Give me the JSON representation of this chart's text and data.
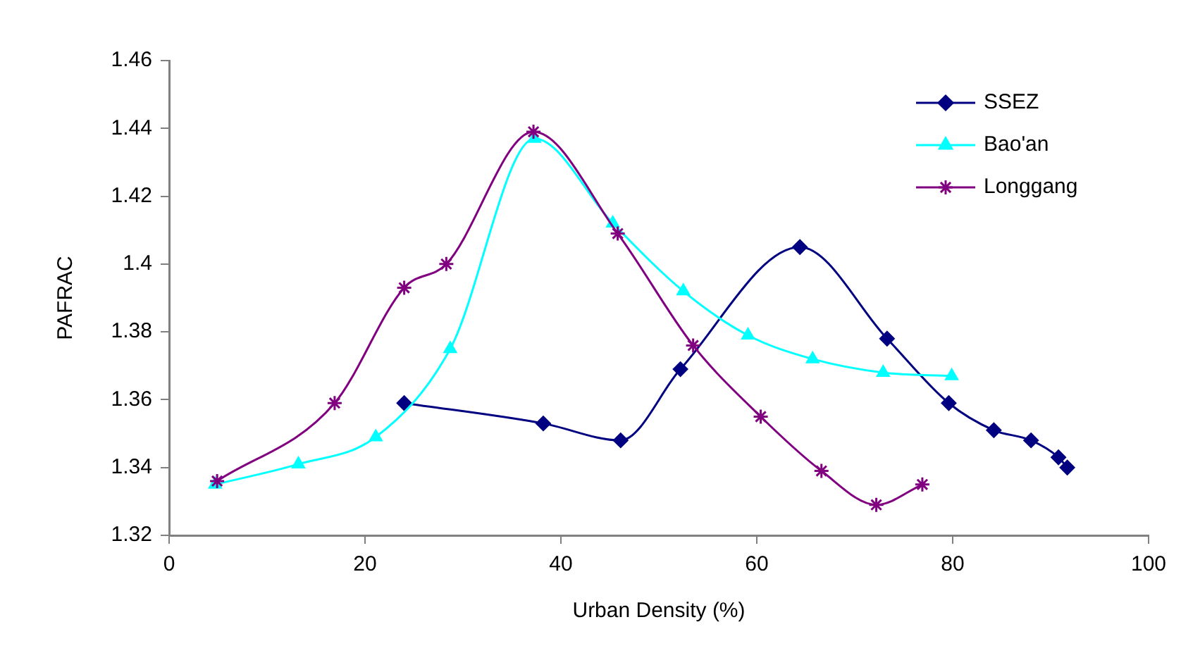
{
  "chart_data": {
    "type": "line",
    "xlabel": "Urban Density (%)",
    "ylabel": "PAFRAC",
    "xlim": [
      0,
      100
    ],
    "xticks": [
      0,
      20,
      40,
      60,
      80,
      100
    ],
    "ylim": [
      1.32,
      1.46
    ],
    "yticks": [
      1.32,
      1.34,
      1.36,
      1.38,
      1.4,
      1.42,
      1.44,
      1.46
    ],
    "grid": false,
    "legend": "top right",
    "series": [
      {
        "name": "SSEZ",
        "color": "#000080",
        "marker": "diamond",
        "x": [
          24.0,
          38.2,
          46.1,
          52.2,
          64.4,
          73.3,
          79.6,
          84.2,
          88.0,
          90.8,
          91.7
        ],
        "values": [
          1.359,
          1.353,
          1.348,
          1.369,
          1.405,
          1.378,
          1.359,
          1.351,
          1.348,
          1.343,
          1.34
        ]
      },
      {
        "name": "Bao'an",
        "color": "#00ffff",
        "marker": "triangle",
        "x": [
          4.7,
          13.2,
          21.1,
          28.7,
          37.3,
          45.3,
          52.5,
          59.1,
          65.7,
          72.9,
          79.9
        ],
        "values": [
          1.335,
          1.341,
          1.349,
          1.375,
          1.437,
          1.412,
          1.392,
          1.379,
          1.372,
          1.368,
          1.367
        ]
      },
      {
        "name": "Longgang",
        "color": "#800080",
        "marker": "cross",
        "x": [
          4.9,
          16.9,
          24.0,
          28.3,
          37.2,
          45.8,
          53.5,
          60.4,
          66.6,
          72.2,
          76.9
        ],
        "values": [
          1.336,
          1.359,
          1.393,
          1.4,
          1.439,
          1.409,
          1.376,
          1.355,
          1.339,
          1.329,
          1.335
        ]
      }
    ]
  }
}
